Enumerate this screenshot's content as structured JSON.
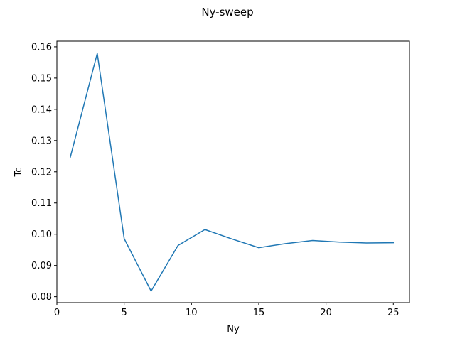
{
  "chart_data": {
    "type": "line",
    "title": "Ny-sweep",
    "xlabel": "Ny",
    "ylabel": "Tc",
    "xlim": [
      0,
      26.2
    ],
    "ylim": [
      0.0781,
      0.1618
    ],
    "x_ticks": [
      0,
      5,
      10,
      15,
      20,
      25
    ],
    "x_tick_labels": [
      "0",
      "5",
      "10",
      "15",
      "20",
      "25"
    ],
    "y_ticks": [
      0.08,
      0.09,
      0.1,
      0.11,
      0.12,
      0.13,
      0.14,
      0.15,
      0.16
    ],
    "y_tick_labels": [
      "0.08",
      "0.09",
      "0.10",
      "0.11",
      "0.12",
      "0.13",
      "0.14",
      "0.15",
      "0.16"
    ],
    "grid": false,
    "series": [
      {
        "color": "#1f77b4",
        "x": [
          1,
          3,
          5,
          7,
          9,
          11,
          13,
          15,
          17,
          19,
          21,
          23,
          25
        ],
        "y": [
          0.1247,
          0.1579,
          0.0986,
          0.0818,
          0.0964,
          0.1015,
          0.0985,
          0.0957,
          0.097,
          0.098,
          0.0975,
          0.0972,
          0.0973
        ]
      }
    ]
  }
}
